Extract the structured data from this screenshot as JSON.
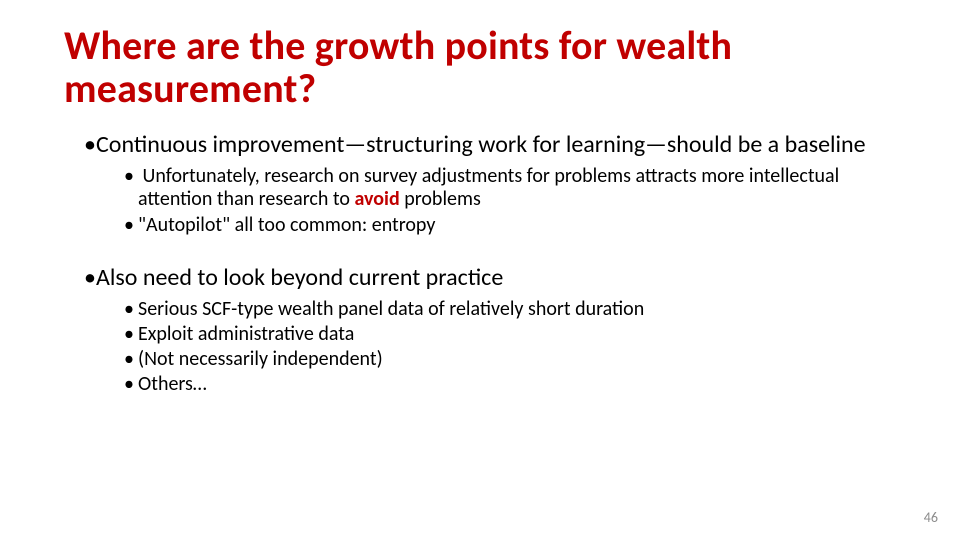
{
  "colors": {
    "accent": "#c00000",
    "text": "#000000",
    "page_number": "#8c8c8c",
    "background": "#ffffff"
  },
  "typography": {
    "title_fontsize_pt": 40,
    "lvl1_fontsize_pt": 24,
    "lvl2_fontsize_pt": 20,
    "page_number_fontsize_pt": 14,
    "font_family": "Calibri",
    "title_weight": 700
  },
  "title": "Where are the growth points for wealth measurement?",
  "bullets": [
    {
      "text": "Continuous improvement—structuring work for learning—should be a baseline",
      "sub": [
        {
          "pre": "Unfortunately, research on survey adjustments for problems attracts more intellectual attention than research to ",
          "emph": "avoid",
          "post": " problems"
        },
        {
          "text": "\"Autopilot\" all too common: entropy"
        }
      ]
    },
    {
      "text": "Also need to look beyond current practice",
      "sub": [
        {
          "text": "Serious SCF-type wealth panel data of relatively short duration"
        },
        {
          "text": "Exploit administrative data"
        },
        {
          "text": "(Not necessarily independent)"
        },
        {
          "text": "Others…"
        }
      ]
    }
  ],
  "page_number": "46"
}
